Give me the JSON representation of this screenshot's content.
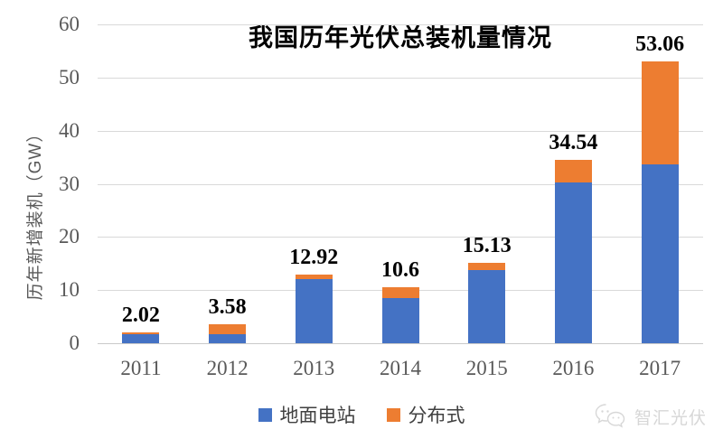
{
  "watermark": {
    "brand": "智汇光伏",
    "icon": "wechat-icon"
  },
  "chart_data": {
    "type": "bar",
    "stacked": true,
    "title": "我国历年光伏总装机量情况",
    "xlabel": "",
    "ylabel": "历年新增装机（GW）",
    "ylim": [
      0,
      60
    ],
    "yticks": [
      0,
      10,
      20,
      30,
      40,
      50,
      60
    ],
    "grid": true,
    "legend_position": "bottom",
    "categories": [
      "2011",
      "2012",
      "2013",
      "2014",
      "2015",
      "2016",
      "2017"
    ],
    "series": [
      {
        "name": "地面电站",
        "color": "#4472C4",
        "values": [
          1.7,
          1.7,
          12.12,
          8.55,
          13.74,
          30.3,
          33.62
        ]
      },
      {
        "name": "分布式",
        "color": "#ED7D31",
        "values": [
          0.32,
          1.88,
          0.8,
          2.05,
          1.39,
          4.24,
          19.44
        ]
      }
    ],
    "total_labels": [
      "2.02",
      "3.58",
      "12.92",
      "10.6",
      "15.13",
      "34.54",
      "53.06"
    ]
  }
}
